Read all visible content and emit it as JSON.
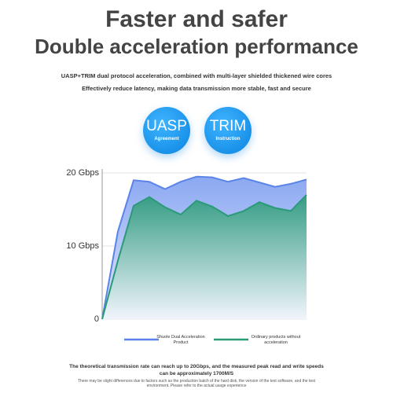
{
  "header": {
    "title": "Faster and safer",
    "subtitle": "Double acceleration performance",
    "lines": [
      "UASP+TRIM dual protocol acceleration, combined with multi-layer shielded thickened wire cores",
      "Effectively reduce latency, making data transmission more stable, fast and secure"
    ]
  },
  "badges": [
    {
      "label": "UASP",
      "caption": "Agreement"
    },
    {
      "label": "TRIM",
      "caption": "Instruction"
    }
  ],
  "chart_data": {
    "type": "area",
    "categories": [
      null,
      null,
      null,
      null,
      null,
      null,
      null,
      null,
      null,
      null,
      null,
      null,
      null,
      null
    ],
    "series": [
      {
        "name": "Shuole Dual Acceleration Product",
        "color": "#5b84e8",
        "values": [
          0,
          12,
          19,
          18.8,
          17.8,
          18.8,
          19.5,
          19.4,
          18.8,
          19.3,
          18.7,
          18.1,
          18.5,
          19.1
        ]
      },
      {
        "name": "Ordinary products without acceleration",
        "color": "#2a9a78",
        "values": [
          0,
          8,
          15.5,
          16.7,
          15.3,
          14.3,
          16.2,
          15.4,
          14.1,
          14.8,
          16,
          15.2,
          14.8,
          17
        ]
      }
    ],
    "ylim": [
      0,
      20
    ],
    "yticks": [
      0,
      {
        "value": 10,
        "label": "10 Gbps"
      },
      {
        "value": 20,
        "label": "20 Gbps"
      }
    ],
    "grid": true
  },
  "footer": [
    "The theoretical transmission rate can reach up to 20Gbps, and the measured peak read and write speeds can be approximately 1700M/S",
    "There may be slight differences due to factors such as the production batch of the hard disk, the version of the test software, and the test environment. Please refer to the actual usage experience"
  ]
}
